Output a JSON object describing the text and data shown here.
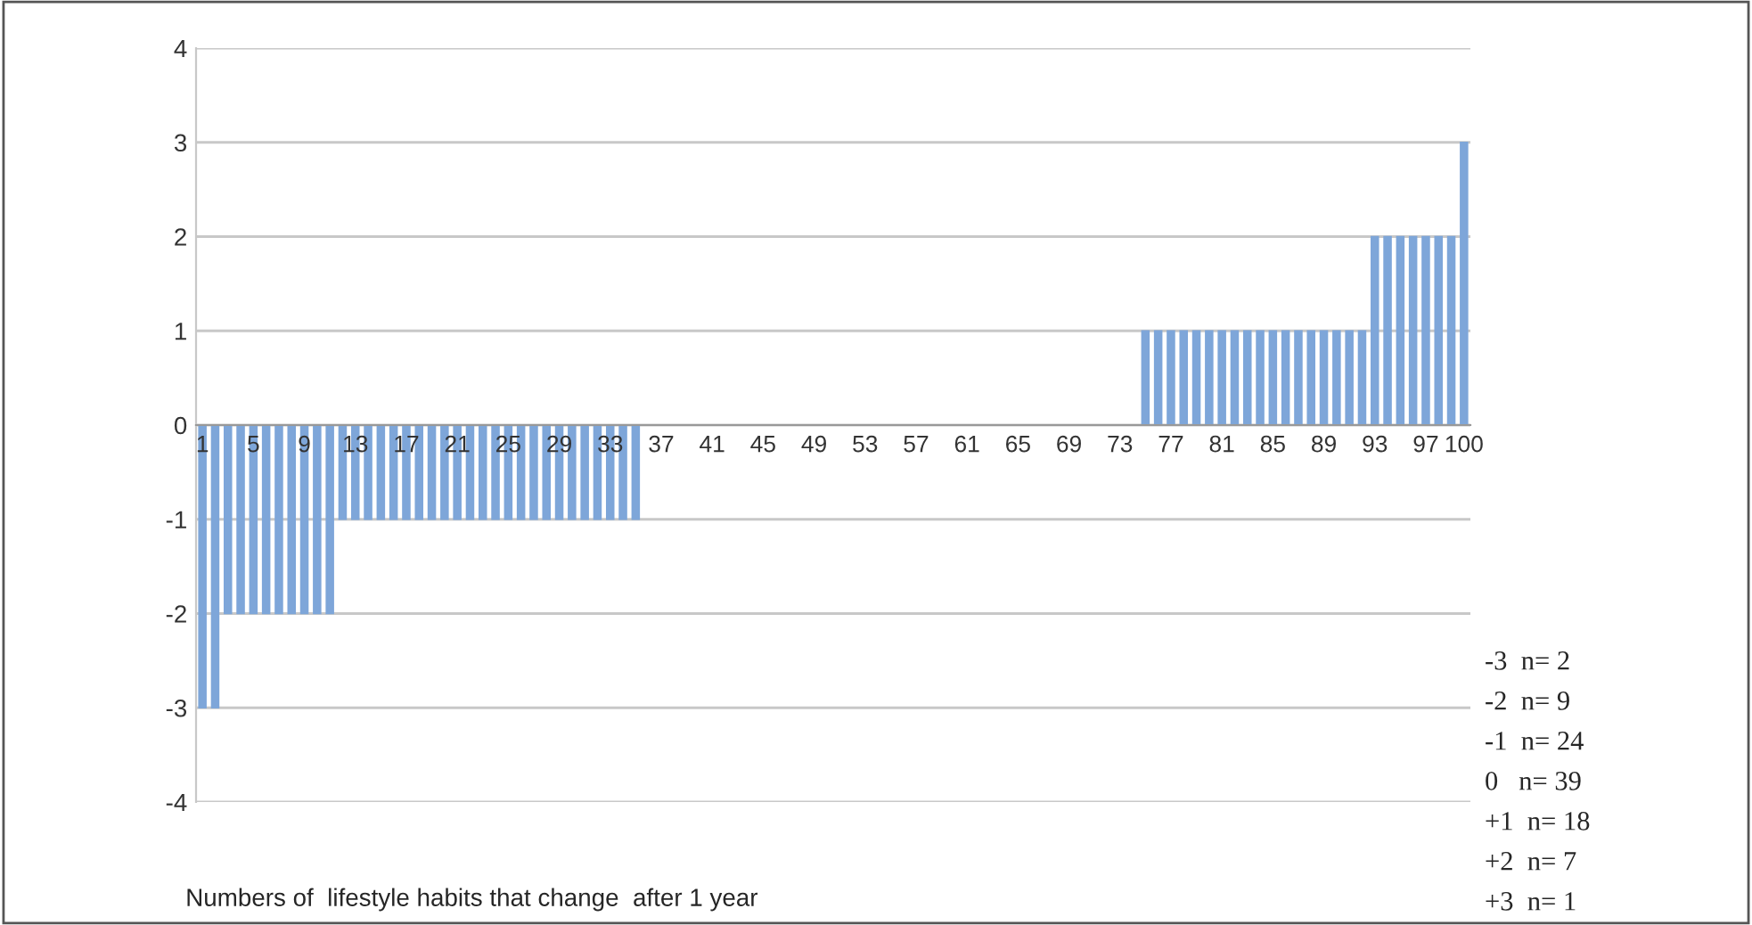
{
  "chart_data": {
    "type": "bar",
    "xlabel": "Numbers of  lifestyle habits that change  after 1 year",
    "categories": [
      "1",
      null,
      null,
      null,
      "5",
      null,
      null,
      null,
      "9",
      null,
      null,
      null,
      "13",
      null,
      null,
      null,
      "17",
      null,
      null,
      null,
      "21",
      null,
      null,
      null,
      "25",
      null,
      null,
      null,
      "29",
      null,
      null,
      null,
      "33",
      null,
      null,
      null,
      "37",
      null,
      null,
      null,
      "41",
      null,
      null,
      null,
      "45",
      null,
      null,
      null,
      "49",
      null,
      null,
      null,
      "53",
      null,
      null,
      null,
      "57",
      null,
      null,
      null,
      "61",
      null,
      null,
      null,
      "65",
      null,
      null,
      null,
      "69",
      null,
      null,
      null,
      "73",
      null,
      null,
      null,
      "77",
      null,
      null,
      null,
      "81",
      null,
      null,
      null,
      "85",
      null,
      null,
      null,
      "89",
      null,
      null,
      null,
      "93",
      null,
      null,
      null,
      "97",
      null,
      null,
      "100"
    ],
    "values": [
      -3,
      -3,
      -2,
      -2,
      -2,
      -2,
      -2,
      -2,
      -2,
      -2,
      -2,
      -1,
      -1,
      -1,
      -1,
      -1,
      -1,
      -1,
      -1,
      -1,
      -1,
      -1,
      -1,
      -1,
      -1,
      -1,
      -1,
      -1,
      -1,
      -1,
      -1,
      -1,
      -1,
      -1,
      -1,
      0,
      0,
      0,
      0,
      0,
      0,
      0,
      0,
      0,
      0,
      0,
      0,
      0,
      0,
      0,
      0,
      0,
      0,
      0,
      0,
      0,
      0,
      0,
      0,
      0,
      0,
      0,
      0,
      0,
      0,
      0,
      0,
      0,
      0,
      0,
      0,
      0,
      0,
      0,
      1,
      1,
      1,
      1,
      1,
      1,
      1,
      1,
      1,
      1,
      1,
      1,
      1,
      1,
      1,
      1,
      1,
      1,
      2,
      2,
      2,
      2,
      2,
      2,
      2,
      3
    ],
    "color": "#7ea6d9",
    "ylim": [
      -4,
      4
    ],
    "yticks": [
      4,
      3,
      2,
      1,
      0,
      -1,
      -2,
      -3,
      -4
    ],
    "grid": "y",
    "annotations": [
      "-3  n= 2",
      "-2  n= 9",
      "-1  n= 24",
      "0   n= 39",
      "+1  n= 18",
      "+2  n= 7",
      "+3  n= 1"
    ]
  }
}
